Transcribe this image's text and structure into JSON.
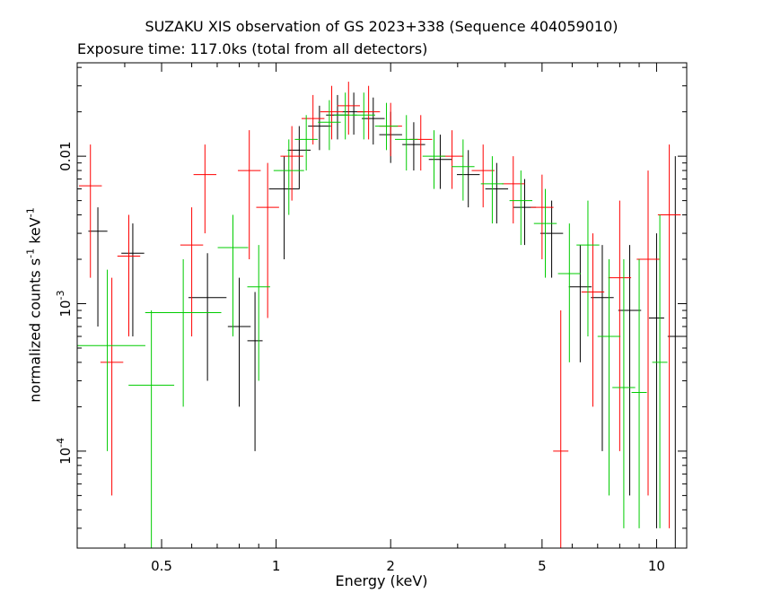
{
  "chart_data": {
    "type": "scatter",
    "title": "SUZAKU XIS observation of GS 2023+338 (Sequence 404059010)",
    "subtitle": "Exposure time: 117.0ks (total from all detectors)",
    "xlabel": "Energy (keV)",
    "ylabel": {
      "main": "normalized counts s",
      "exp1": "-1",
      "mid": " keV",
      "exp2": "-1"
    },
    "xscale": "log",
    "yscale": "log",
    "xlim": [
      0.3,
      12
    ],
    "ylim": [
      2.2e-05,
      0.043
    ],
    "x_ticks": [
      {
        "value": 0.5,
        "label": "0.5"
      },
      {
        "value": 1,
        "label": "1"
      },
      {
        "value": 2,
        "label": "2"
      },
      {
        "value": 5,
        "label": "5"
      },
      {
        "value": 10,
        "label": "10"
      }
    ],
    "y_ticks": [
      {
        "value": 0.0001,
        "base": "10",
        "exp": "-4"
      },
      {
        "value": 0.001,
        "base": "10",
        "exp": "-3"
      },
      {
        "value": 0.01,
        "base": "0.01",
        "exp": ""
      }
    ],
    "grid": false,
    "series": [
      {
        "color": "#000000",
        "points": [
          [
            0.34,
            0.0031,
            0.025,
            0.0007,
            0.0045
          ],
          [
            0.42,
            0.0022,
            0.03,
            0.0006,
            0.0035
          ],
          [
            0.66,
            0.0011,
            0.05,
            0.0003,
            0.0022
          ],
          [
            0.8,
            0.0007,
            0.03,
            0.0002,
            0.0015
          ],
          [
            0.88,
            0.00056,
            0.02,
            0.0001,
            0.0012
          ],
          [
            1.05,
            0.006,
            0.04,
            0.002,
            0.01
          ],
          [
            1.15,
            0.011,
            0.03,
            0.006,
            0.016
          ],
          [
            1.3,
            0.016,
            0.03,
            0.011,
            0.022
          ],
          [
            1.45,
            0.019,
            0.03,
            0.013,
            0.026
          ],
          [
            1.6,
            0.02,
            0.03,
            0.014,
            0.027
          ],
          [
            1.8,
            0.018,
            0.03,
            0.012,
            0.025
          ],
          [
            2.0,
            0.014,
            0.03,
            0.009,
            0.02
          ],
          [
            2.3,
            0.012,
            0.03,
            0.008,
            0.017
          ],
          [
            2.7,
            0.0095,
            0.03,
            0.006,
            0.014
          ],
          [
            3.2,
            0.0075,
            0.03,
            0.0045,
            0.011
          ],
          [
            3.8,
            0.006,
            0.03,
            0.0035,
            0.009
          ],
          [
            4.5,
            0.0045,
            0.03,
            0.0025,
            0.007
          ],
          [
            5.3,
            0.003,
            0.03,
            0.0015,
            0.005
          ],
          [
            6.3,
            0.0013,
            0.03,
            0.0004,
            0.0025
          ],
          [
            7.2,
            0.0011,
            0.03,
            0.0001,
            0.0025
          ],
          [
            8.5,
            0.0009,
            0.03,
            5e-05,
            0.0025
          ],
          [
            10.0,
            0.0008,
            0.02,
            3e-05,
            0.003
          ],
          [
            11.2,
            0.0006,
            0.02,
            2e-05,
            0.01
          ]
        ]
      },
      {
        "color": "#ff0000",
        "points": [
          [
            0.325,
            0.0063,
            0.03,
            0.0015,
            0.012
          ],
          [
            0.37,
            0.0004,
            0.03,
            5e-05,
            0.0015
          ],
          [
            0.41,
            0.0021,
            0.03,
            0.0006,
            0.004
          ],
          [
            0.6,
            0.0025,
            0.03,
            0.0006,
            0.0045
          ],
          [
            0.65,
            0.0075,
            0.03,
            0.003,
            0.012
          ],
          [
            0.85,
            0.008,
            0.03,
            0.002,
            0.015
          ],
          [
            0.95,
            0.0045,
            0.03,
            0.0008,
            0.009
          ],
          [
            1.1,
            0.01,
            0.03,
            0.005,
            0.016
          ],
          [
            1.25,
            0.018,
            0.03,
            0.012,
            0.026
          ],
          [
            1.4,
            0.02,
            0.03,
            0.013,
            0.03
          ],
          [
            1.55,
            0.022,
            0.03,
            0.014,
            0.032
          ],
          [
            1.75,
            0.02,
            0.03,
            0.013,
            0.03
          ],
          [
            2.0,
            0.016,
            0.03,
            0.01,
            0.023
          ],
          [
            2.4,
            0.013,
            0.03,
            0.008,
            0.019
          ],
          [
            2.9,
            0.01,
            0.03,
            0.006,
            0.015
          ],
          [
            3.5,
            0.008,
            0.03,
            0.0045,
            0.012
          ],
          [
            4.2,
            0.0065,
            0.03,
            0.0035,
            0.01
          ],
          [
            5.0,
            0.0045,
            0.03,
            0.002,
            0.0075
          ],
          [
            5.6,
            0.0001,
            0.02,
            2e-05,
            0.0009
          ],
          [
            6.8,
            0.0012,
            0.03,
            0.0002,
            0.003
          ],
          [
            8.0,
            0.0015,
            0.03,
            0.0001,
            0.005
          ],
          [
            9.5,
            0.002,
            0.03,
            5e-05,
            0.008
          ],
          [
            10.8,
            0.004,
            0.03,
            3e-05,
            0.012
          ]
        ]
      },
      {
        "color": "#00cc00",
        "points": [
          [
            0.36,
            0.00052,
            0.1,
            0.0001,
            0.0017
          ],
          [
            0.47,
            0.00028,
            0.06,
            2e-05,
            0.0009
          ],
          [
            0.57,
            0.00087,
            0.1,
            0.0002,
            0.002
          ],
          [
            0.77,
            0.0024,
            0.04,
            0.0006,
            0.004
          ],
          [
            0.9,
            0.0013,
            0.03,
            0.0003,
            0.0025
          ],
          [
            1.08,
            0.008,
            0.04,
            0.004,
            0.013
          ],
          [
            1.2,
            0.013,
            0.03,
            0.008,
            0.019
          ],
          [
            1.38,
            0.017,
            0.03,
            0.011,
            0.024
          ],
          [
            1.52,
            0.019,
            0.03,
            0.013,
            0.027
          ],
          [
            1.7,
            0.019,
            0.03,
            0.013,
            0.027
          ],
          [
            1.95,
            0.016,
            0.03,
            0.011,
            0.023
          ],
          [
            2.2,
            0.013,
            0.03,
            0.008,
            0.019
          ],
          [
            2.6,
            0.01,
            0.03,
            0.006,
            0.015
          ],
          [
            3.1,
            0.0085,
            0.03,
            0.005,
            0.013
          ],
          [
            3.7,
            0.0065,
            0.03,
            0.0035,
            0.01
          ],
          [
            4.4,
            0.005,
            0.03,
            0.0025,
            0.008
          ],
          [
            5.1,
            0.0035,
            0.03,
            0.0015,
            0.006
          ],
          [
            5.9,
            0.0016,
            0.03,
            0.0004,
            0.0035
          ],
          [
            6.6,
            0.0025,
            0.03,
            0.0006,
            0.005
          ],
          [
            7.5,
            0.0006,
            0.03,
            5e-05,
            0.002
          ],
          [
            8.2,
            0.00027,
            0.03,
            3e-05,
            0.002
          ],
          [
            9.0,
            0.00025,
            0.02,
            3e-05,
            0.002
          ],
          [
            10.2,
            0.0004,
            0.02,
            3e-05,
            0.004
          ]
        ]
      }
    ]
  }
}
